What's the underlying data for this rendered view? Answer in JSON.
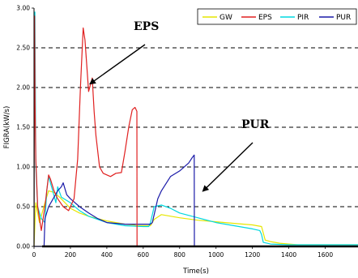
{
  "chart_data": {
    "type": "line",
    "xlabel": "Time(s)",
    "ylabel": "FIGRA(kW/s)",
    "xlim": [
      0,
      1780
    ],
    "ylim": [
      0,
      3.0
    ],
    "x_ticks": [
      "0",
      "200",
      "400",
      "600",
      "800",
      "1000",
      "1200",
      "1400",
      "1600"
    ],
    "y_ticks": [
      "0.00",
      "0.50",
      "1.00",
      "1.50",
      "2.00",
      "2.50",
      "3.00"
    ],
    "grid": "horizontal dashed",
    "legend_position": "top-right",
    "legend": [
      "GW",
      "EPS",
      "PIR",
      "PUR"
    ],
    "annotations": [
      {
        "text": "EPS",
        "target_x": 310,
        "target_y": 2.05
      },
      {
        "text": "PUR",
        "target_x": 930,
        "target_y": 0.7
      }
    ],
    "series": [
      {
        "name": "GW",
        "color": "#e6e600",
        "x": [
          0,
          10,
          30,
          60,
          80,
          110,
          140,
          170,
          200,
          250,
          300,
          400,
          500,
          550,
          560,
          600,
          640,
          660,
          700,
          800,
          900,
          1000,
          1100,
          1200,
          1250,
          1270,
          1300,
          1350,
          1400,
          1450,
          1780
        ],
        "y": [
          0,
          0.55,
          0.3,
          0.55,
          0.7,
          0.68,
          0.62,
          0.55,
          0.48,
          0.42,
          0.38,
          0.32,
          0.28,
          0.27,
          0.26,
          0.26,
          0.26,
          0.34,
          0.4,
          0.36,
          0.33,
          0.31,
          0.29,
          0.27,
          0.25,
          0.08,
          0.06,
          0.04,
          0.03,
          0.02,
          0.02
        ]
      },
      {
        "name": "EPS",
        "color": "#e02020",
        "x": [
          0,
          3,
          6,
          10,
          20,
          40,
          60,
          70,
          80,
          90,
          110,
          130,
          160,
          190,
          220,
          240,
          255,
          270,
          280,
          300,
          320,
          330,
          340,
          360,
          380,
          400,
          420,
          450,
          480,
          500,
          520,
          540,
          555,
          565,
          566,
          650,
          1780
        ],
        "y": [
          0,
          2.9,
          1.8,
          1.1,
          0.5,
          0.2,
          0.5,
          0.7,
          0.9,
          0.85,
          0.7,
          0.6,
          0.5,
          0.45,
          0.6,
          1.1,
          2.0,
          2.75,
          2.6,
          1.95,
          2.12,
          1.7,
          1.4,
          1.0,
          0.92,
          0.9,
          0.88,
          0.92,
          0.93,
          1.2,
          1.5,
          1.72,
          1.75,
          1.7,
          0,
          0,
          0
        ]
      },
      {
        "name": "PIR",
        "color": "#00d8e0",
        "x": [
          0,
          5,
          10,
          20,
          40,
          60,
          70,
          80,
          100,
          120,
          130,
          150,
          200,
          250,
          300,
          400,
          500,
          600,
          630,
          640,
          660,
          700,
          750,
          800,
          900,
          1000,
          1100,
          1200,
          1240,
          1250,
          1260,
          1300,
          1400,
          1780
        ],
        "y": [
          0,
          2.95,
          1.0,
          0.5,
          0.35,
          0.3,
          0.7,
          0.88,
          0.72,
          0.55,
          0.75,
          0.62,
          0.55,
          0.45,
          0.38,
          0.3,
          0.26,
          0.25,
          0.25,
          0.3,
          0.5,
          0.52,
          0.48,
          0.42,
          0.36,
          0.3,
          0.26,
          0.22,
          0.2,
          0.15,
          0.05,
          0.03,
          0.02,
          0.02
        ]
      },
      {
        "name": "PUR",
        "color": "#1a1aa8",
        "x": [
          0,
          40,
          55,
          60,
          80,
          100,
          130,
          150,
          160,
          180,
          200,
          250,
          300,
          350,
          400,
          500,
          600,
          630,
          640,
          650,
          680,
          700,
          750,
          800,
          850,
          870,
          880,
          881,
          1780
        ],
        "y": [
          0,
          0,
          0,
          0.35,
          0.5,
          0.58,
          0.7,
          0.75,
          0.8,
          0.65,
          0.6,
          0.5,
          0.42,
          0.35,
          0.3,
          0.28,
          0.28,
          0.28,
          0.28,
          0.3,
          0.6,
          0.7,
          0.88,
          0.95,
          1.05,
          1.12,
          1.15,
          0,
          0
        ]
      }
    ]
  }
}
